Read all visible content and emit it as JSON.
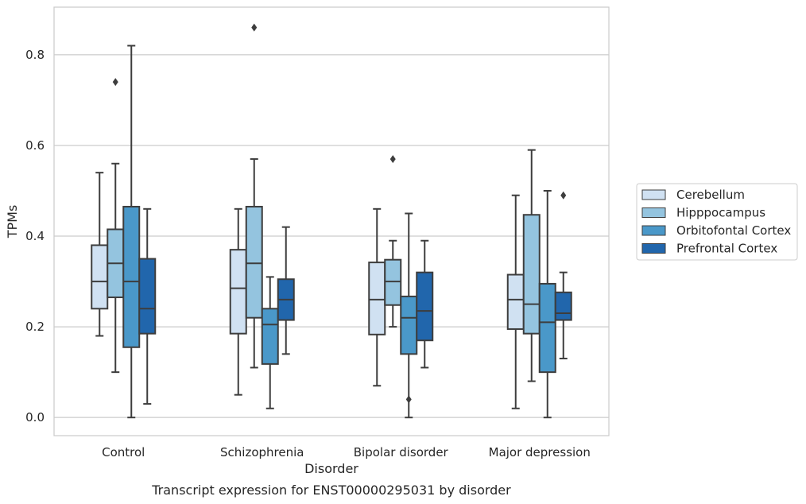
{
  "chart_data": {
    "type": "box",
    "title": "",
    "caption": "Transcript expression for ENST00000295031 by disorder",
    "xlabel": "Disorder",
    "ylabel": "TPMs",
    "ylim": [
      -0.04,
      0.905
    ],
    "yticks": [
      0.0,
      0.2,
      0.4,
      0.6,
      0.8
    ],
    "ytick_labels": [
      "0.0",
      "0.2",
      "0.4",
      "0.6",
      "0.8"
    ],
    "grid": "horizontal",
    "legend_position": "right",
    "categories": [
      "Control",
      "Schizophrenia",
      "Bipolar disorder",
      "Major depression"
    ],
    "series": [
      {
        "name": "Cerebellum",
        "color": "#d0e1f2",
        "boxes": [
          {
            "whislo": 0.18,
            "q1": 0.24,
            "med": 0.3,
            "q3": 0.38,
            "whishi": 0.54,
            "fliers": []
          },
          {
            "whislo": 0.05,
            "q1": 0.185,
            "med": 0.285,
            "q3": 0.37,
            "whishi": 0.46,
            "fliers": []
          },
          {
            "whislo": 0.07,
            "q1": 0.183,
            "med": 0.26,
            "q3": 0.342,
            "whishi": 0.46,
            "fliers": []
          },
          {
            "whislo": 0.02,
            "q1": 0.195,
            "med": 0.26,
            "q3": 0.315,
            "whishi": 0.49,
            "fliers": []
          }
        ]
      },
      {
        "name": "Hipppocampus",
        "color": "#94c4df",
        "boxes": [
          {
            "whislo": 0.1,
            "q1": 0.265,
            "med": 0.34,
            "q3": 0.415,
            "whishi": 0.56,
            "fliers": [
              0.74
            ]
          },
          {
            "whislo": 0.11,
            "q1": 0.22,
            "med": 0.34,
            "q3": 0.465,
            "whishi": 0.57,
            "fliers": [
              0.86
            ]
          },
          {
            "whislo": 0.2,
            "q1": 0.248,
            "med": 0.3,
            "q3": 0.348,
            "whishi": 0.39,
            "fliers": [
              0.57
            ]
          },
          {
            "whislo": 0.08,
            "q1": 0.185,
            "med": 0.25,
            "q3": 0.447,
            "whishi": 0.59,
            "fliers": []
          }
        ]
      },
      {
        "name": "Orbitofontal Cortex",
        "color": "#4a98c9",
        "boxes": [
          {
            "whislo": 0.0,
            "q1": 0.155,
            "med": 0.3,
            "q3": 0.465,
            "whishi": 0.82,
            "fliers": []
          },
          {
            "whislo": 0.02,
            "q1": 0.118,
            "med": 0.205,
            "q3": 0.24,
            "whishi": 0.31,
            "fliers": []
          },
          {
            "whislo": 0.0,
            "q1": 0.14,
            "med": 0.22,
            "q3": 0.267,
            "whishi": 0.45,
            "fliers": [
              0.04
            ]
          },
          {
            "whislo": 0.0,
            "q1": 0.1,
            "med": 0.21,
            "q3": 0.295,
            "whishi": 0.5,
            "fliers": []
          }
        ]
      },
      {
        "name": "Prefrontal Cortex",
        "color": "#2166ac",
        "boxes": [
          {
            "whislo": 0.03,
            "q1": 0.185,
            "med": 0.24,
            "q3": 0.35,
            "whishi": 0.46,
            "fliers": []
          },
          {
            "whislo": 0.14,
            "q1": 0.215,
            "med": 0.26,
            "q3": 0.305,
            "whishi": 0.42,
            "fliers": []
          },
          {
            "whislo": 0.11,
            "q1": 0.17,
            "med": 0.235,
            "q3": 0.32,
            "whishi": 0.39,
            "fliers": []
          },
          {
            "whislo": 0.13,
            "q1": 0.215,
            "med": 0.23,
            "q3": 0.276,
            "whishi": 0.32,
            "fliers": [
              0.49
            ]
          }
        ]
      }
    ]
  }
}
